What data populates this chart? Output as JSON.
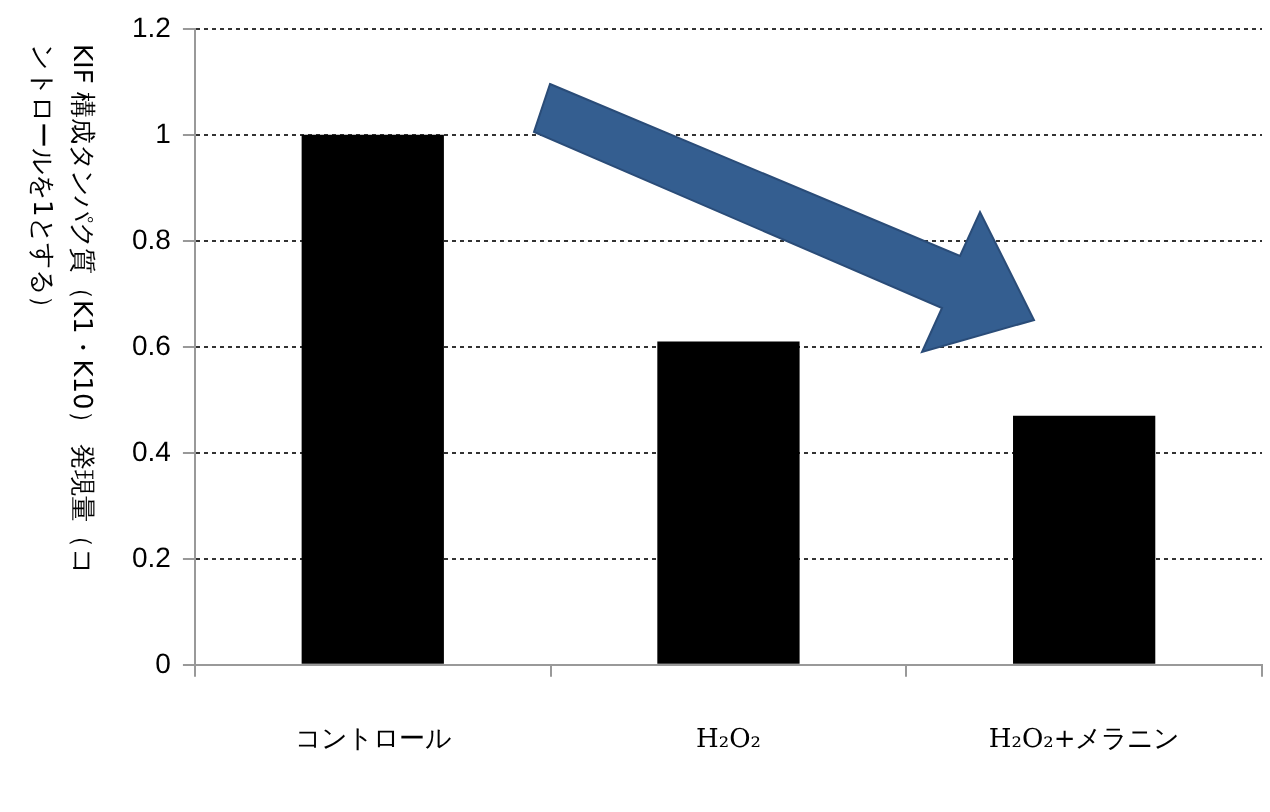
{
  "chart_data": {
    "type": "bar",
    "categories": [
      "コントロール",
      "H₂O₂",
      "H₂O₂+メラニン"
    ],
    "ylabel": "KIF 構成タンパク質（K1・K10） 発現量（コントロールを1とする）",
    "values": [
      1,
      0.61,
      0.47
    ],
    "color": "#000000",
    "ylim": [
      0,
      1.2
    ],
    "yticks": [
      0,
      0.2,
      0.4,
      0.6,
      0.8,
      1,
      1.2
    ],
    "grid": "y",
    "legend": false
  }
}
